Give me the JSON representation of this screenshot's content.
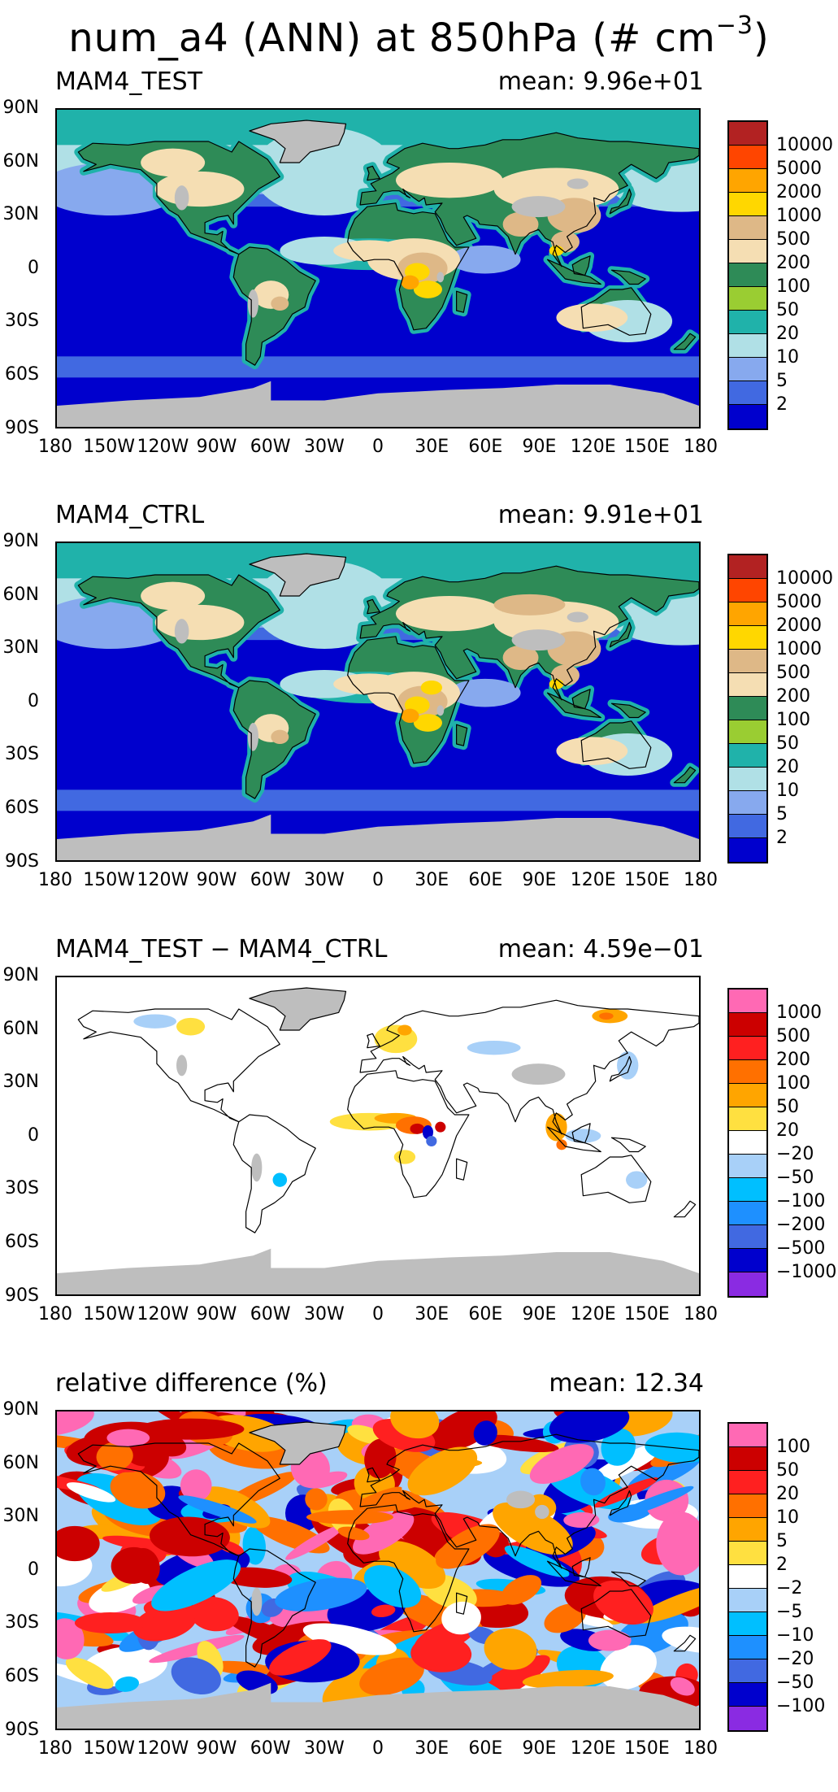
{
  "figure": {
    "title_parts": [
      "num_a4 (ANN) at 850hPa (# cm",
      "−3",
      ")"
    ]
  },
  "axes": {
    "lat_labels": [
      "90N",
      "60N",
      "30N",
      "0",
      "30S",
      "60S",
      "90S"
    ],
    "lon_labels": [
      "180",
      "150W",
      "120W",
      "90W",
      "60W",
      "30W",
      "0",
      "30E",
      "60E",
      "90E",
      "120E",
      "150E",
      "180"
    ]
  },
  "panels": [
    {
      "title": "MAM4_TEST",
      "mean": "mean: 9.96e+01",
      "kind": "absolute",
      "levels": [
        "10000",
        "5000",
        "2000",
        "1000",
        "500",
        "200",
        "100",
        "50",
        "20",
        "10",
        "5",
        "2"
      ],
      "colors": [
        "#b22222",
        "#ff4500",
        "#ffa500",
        "#ffd700",
        "#deb887",
        "#f5deb3",
        "#2e8b57",
        "#9acd32",
        "#20b2aa",
        "#b0e0e6",
        "#87a9ee",
        "#4169e1",
        "#0000cd"
      ],
      "land_color": "#bebebe"
    },
    {
      "title": "MAM4_CTRL",
      "mean": "mean: 9.91e+01",
      "kind": "absolute",
      "levels": [
        "10000",
        "5000",
        "2000",
        "1000",
        "500",
        "200",
        "100",
        "50",
        "20",
        "10",
        "5",
        "2"
      ],
      "colors": [
        "#b22222",
        "#ff4500",
        "#ffa500",
        "#ffd700",
        "#deb887",
        "#f5deb3",
        "#2e8b57",
        "#9acd32",
        "#20b2aa",
        "#b0e0e6",
        "#87a9ee",
        "#4169e1",
        "#0000cd"
      ],
      "land_color": "#bebebe"
    },
    {
      "title": "MAM4_TEST − MAM4_CTRL",
      "mean": "mean: 4.59e−01",
      "kind": "difference",
      "levels": [
        "1000",
        "500",
        "200",
        "100",
        "50",
        "20",
        "−20",
        "−50",
        "−100",
        "−200",
        "−500",
        "−1000"
      ],
      "colors": [
        "#ff69b4",
        "#cc0000",
        "#ff2020",
        "#ff7000",
        "#ffa500",
        "#ffe040",
        "#ffffff",
        "#a8d0f8",
        "#00bfff",
        "#1e90ff",
        "#4169e1",
        "#0000cd",
        "#8a2be2"
      ],
      "land_color": "#bebebe"
    },
    {
      "title": "relative difference (%)",
      "mean": "mean: 12.34",
      "kind": "relative",
      "levels": [
        "100",
        "50",
        "20",
        "10",
        "5",
        "2",
        "−2",
        "−5",
        "−10",
        "−20",
        "−50",
        "−100"
      ],
      "colors": [
        "#ff69b4",
        "#cc0000",
        "#ff2020",
        "#ff7000",
        "#ffa500",
        "#ffe040",
        "#ffffff",
        "#a8d0f8",
        "#00bfff",
        "#1e90ff",
        "#4169e1",
        "#0000cd",
        "#8a2be2"
      ],
      "land_color": "#bebebe"
    }
  ]
}
